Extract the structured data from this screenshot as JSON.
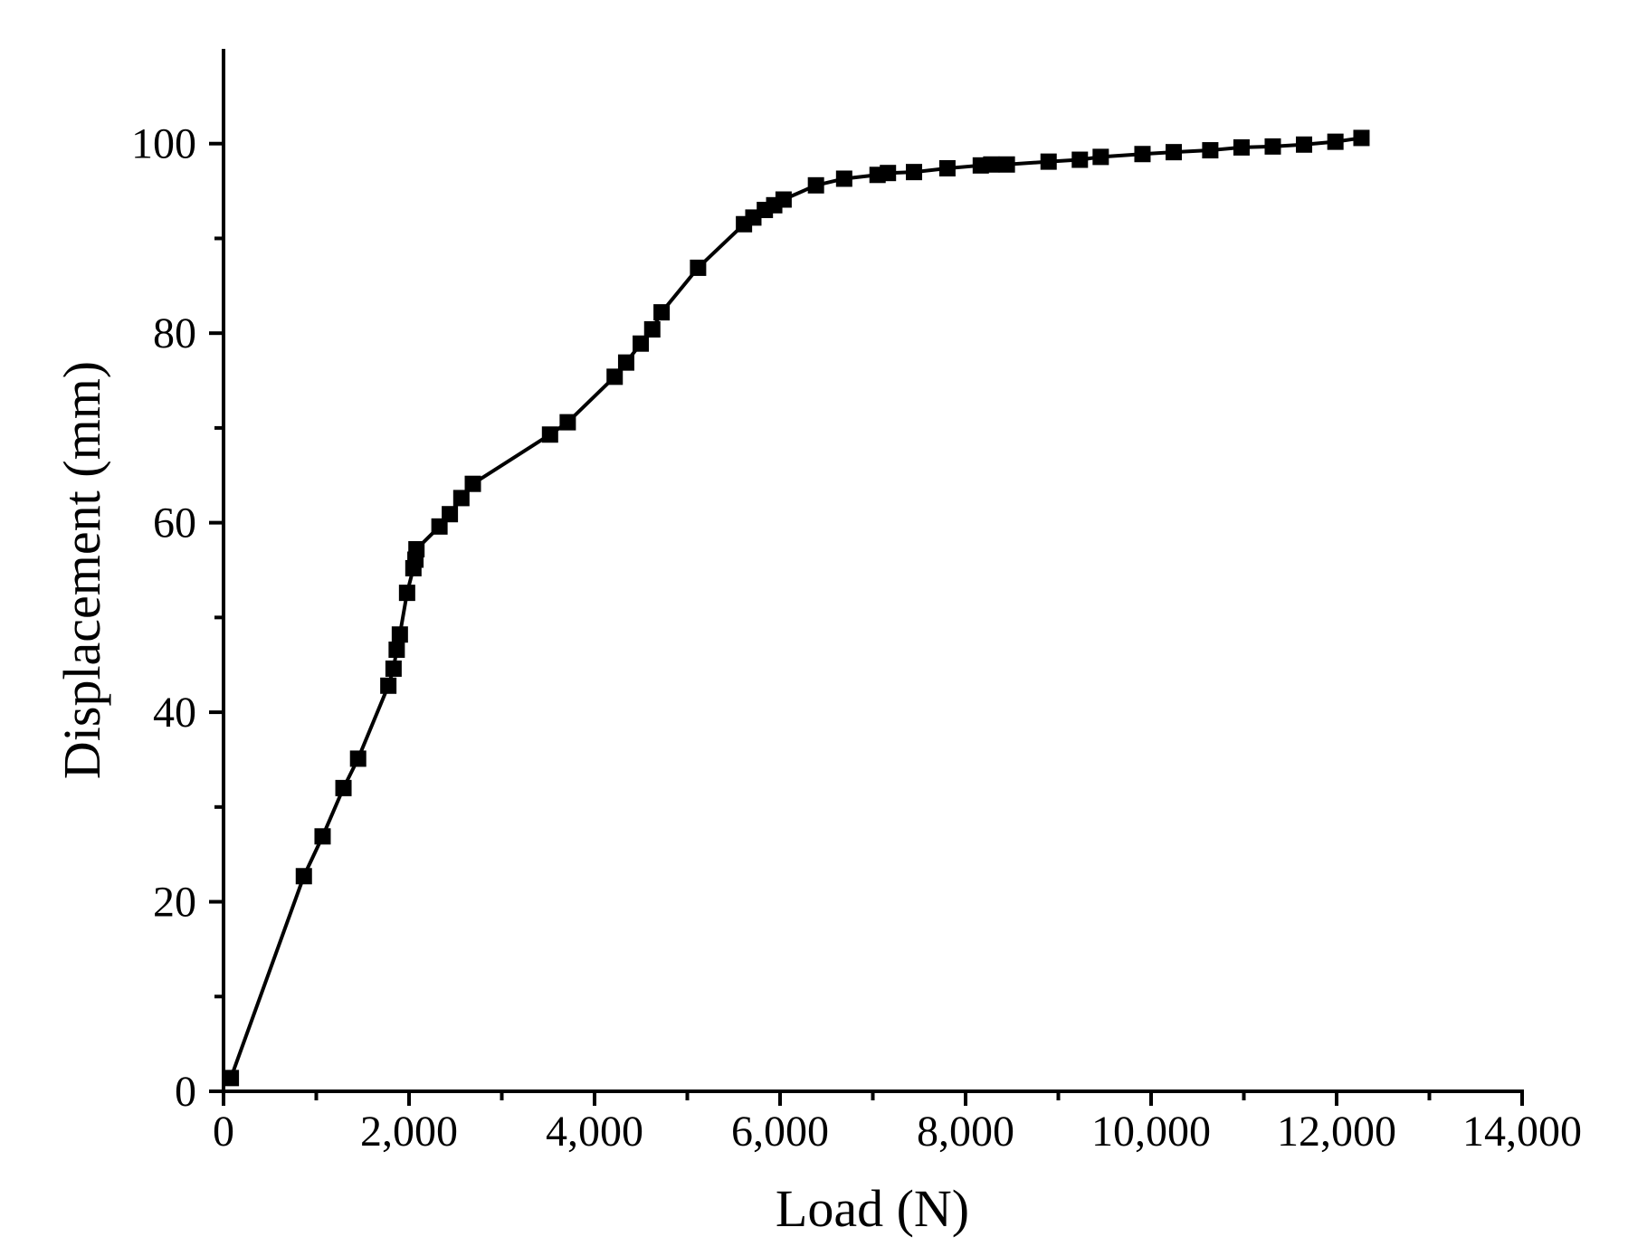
{
  "chart_data": {
    "type": "line",
    "x_label": "Load (N)",
    "y_label": "Displacement (mm)",
    "color": "#000000",
    "marker": "square",
    "x": [
      79,
      866,
      1068,
      1293,
      1451,
      1777,
      1833,
      1867,
      1901,
      1979,
      2047,
      2069,
      2080,
      2328,
      2440,
      2564,
      2688,
      3520,
      3711,
      4217,
      4341,
      4498,
      4622,
      4723,
      5116,
      5611,
      5712,
      5836,
      5937,
      6038,
      6387,
      6691,
      7051,
      7163,
      7444,
      7804,
      8164,
      8277,
      8445,
      8895,
      9232,
      9457,
      9907,
      10244,
      10638,
      10975,
      11312,
      11649,
      11987,
      12268
    ],
    "values": [
      1.4,
      22.7,
      26.9,
      32.0,
      35.1,
      42.8,
      44.6,
      46.6,
      48.2,
      52.6,
      55.2,
      56.1,
      57.2,
      59.6,
      60.9,
      62.6,
      64.1,
      69.3,
      70.6,
      75.4,
      76.9,
      78.9,
      80.4,
      82.2,
      86.9,
      91.5,
      92.2,
      93.0,
      93.5,
      94.1,
      95.6,
      96.3,
      96.7,
      96.9,
      97.0,
      97.4,
      97.7,
      97.8,
      97.8,
      98.1,
      98.3,
      98.6,
      98.9,
      99.1,
      99.3,
      99.6,
      99.7,
      99.9,
      100.2,
      100.6
    ],
    "xlim": [
      0,
      14000
    ],
    "xticks": [
      0,
      {
        "value": 2000,
        "label": "2,000"
      },
      {
        "value": 4000,
        "label": "4,000"
      },
      {
        "value": 6000,
        "label": "6,000"
      },
      {
        "value": 8000,
        "label": "8,000"
      },
      {
        "value": 10000,
        "label": "10,000"
      },
      {
        "value": 12000,
        "label": "12,000"
      },
      {
        "value": 14000,
        "label": "14,000"
      }
    ],
    "ylim": [
      0,
      110
    ],
    "yticks": [
      0,
      20,
      40,
      60,
      80,
      100
    ],
    "grid": false
  }
}
